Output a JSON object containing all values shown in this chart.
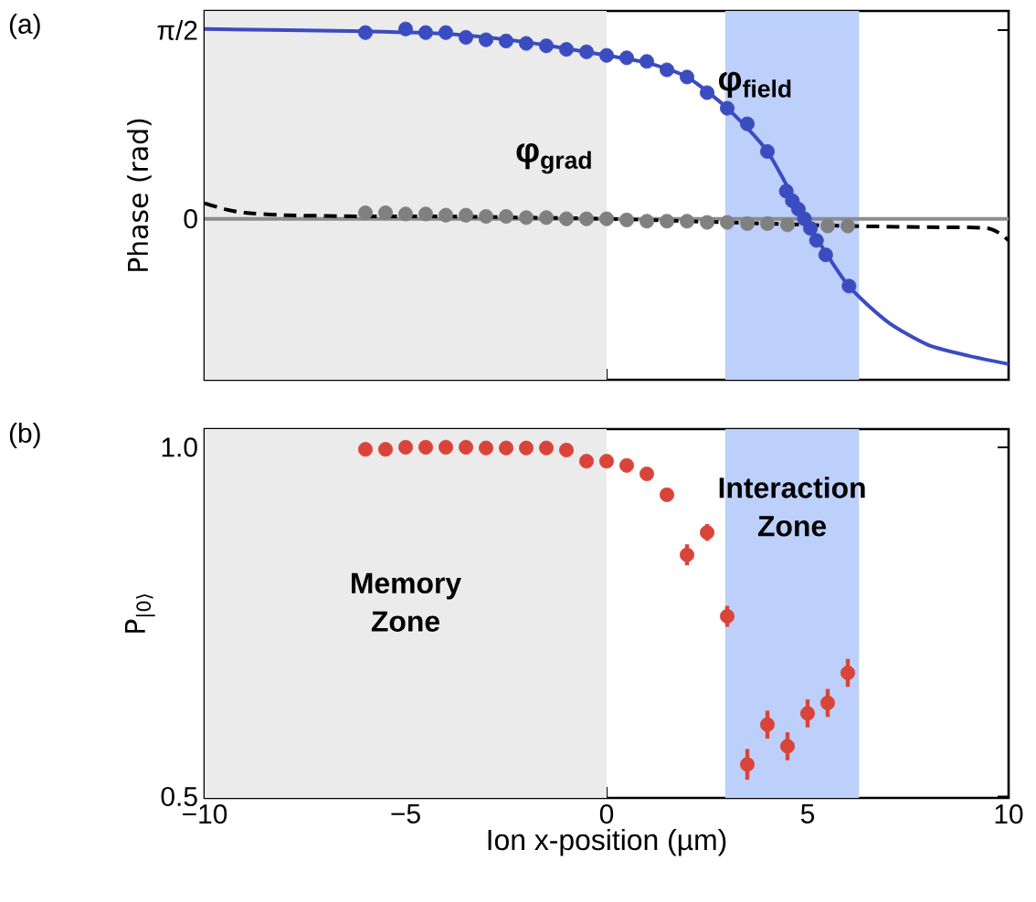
{
  "chart_data": [
    {
      "type": "scatter",
      "ylabel": "Phase (rad)",
      "annotations": [
        "(a)"
      ],
      "marker": "circle",
      "tick_labels": "y",
      "xlim": [
        -10,
        10
      ],
      "xticks": [
        -10,
        -5,
        0,
        5,
        10
      ],
      "ylim": [
        -1.34,
        1.73
      ],
      "yticks": [
        {
          "value": 1.5708,
          "label": "π/2"
        },
        {
          "value": 0,
          "label": "0"
        }
      ],
      "bands": [
        {
          "axis": "x",
          "from": -10,
          "to": 0,
          "color": "#ebebeb"
        },
        {
          "axis": "x",
          "from": 2.95,
          "to": 6.28,
          "color": "#bdd0fb"
        }
      ],
      "ref_lines": [
        {
          "axis": "y",
          "value": 0,
          "color": "#8c8c8c"
        }
      ],
      "series": [
        {
          "type": "line",
          "marker": "none",
          "color": "#000000",
          "line_style": "dashed",
          "x": [
            -10,
            -9.5,
            -9,
            -8,
            -6,
            -4,
            -2,
            0,
            2,
            4,
            6,
            8,
            9.5,
            10
          ],
          "values": [
            0.13,
            0.08,
            0.05,
            0.03,
            0.02,
            0.02,
            0.01,
            0.0,
            -0.02,
            -0.04,
            -0.06,
            -0.07,
            -0.08,
            -0.18
          ]
        },
        {
          "type": "line",
          "marker": "none",
          "color": "#3b4cc0",
          "line_style": "solid",
          "x": [
            -10,
            -6,
            -4,
            -2,
            0,
            1,
            2,
            3,
            4,
            5,
            6,
            7,
            8,
            9,
            10
          ],
          "values": [
            1.58,
            1.56,
            1.54,
            1.47,
            1.36,
            1.3,
            1.18,
            0.92,
            0.56,
            -0.04,
            -0.55,
            -0.86,
            -1.05,
            -1.14,
            -1.21
          ]
        },
        {
          "name": "φ$_{grad}$",
          "color": "#808080",
          "x": [
            -6,
            -5.5,
            -5,
            -4.5,
            -4,
            -3.5,
            -3,
            -2.5,
            -2,
            -1.5,
            -1,
            -0.5,
            0,
            0.5,
            1,
            1.5,
            2,
            2.5,
            3,
            3.5,
            4,
            4.5,
            5,
            5.5,
            6
          ],
          "values": [
            0.05,
            0.05,
            0.04,
            0.04,
            0.03,
            0.03,
            0.02,
            0.02,
            0.01,
            0.01,
            0,
            0,
            0,
            -0.01,
            -0.02,
            -0.02,
            -0.02,
            -0.03,
            -0.03,
            -0.04,
            -0.04,
            -0.05,
            null,
            -0.06,
            -0.06
          ]
        },
        {
          "name": "φ$_{field}$",
          "color": "#3b4cc0",
          "x": [
            -6,
            -5,
            -4.5,
            -4,
            -3.5,
            -3,
            -2.5,
            -2,
            -1.5,
            -1,
            -0.5,
            0,
            0.5,
            1,
            1.5,
            2,
            2.5,
            3,
            3.5,
            4,
            4.47,
            4.62,
            4.77,
            4.92,
            5.07,
            5.22,
            5.45,
            6.03
          ],
          "values": [
            1.55,
            1.58,
            1.55,
            1.55,
            1.51,
            1.49,
            1.48,
            1.46,
            1.44,
            1.41,
            1.39,
            1.36,
            1.34,
            1.31,
            1.24,
            1.18,
            1.05,
            0.92,
            0.79,
            0.56,
            0.23,
            0.15,
            0.08,
            0,
            -0.08,
            -0.18,
            -0.3,
            -0.56
          ]
        }
      ]
    },
    {
      "type": "scatter",
      "xlabel": "Ion x-position (µm)",
      "ylabel": "P$_{|0⟩}$",
      "annotations": [
        "(b)"
      ],
      "marker": "circle",
      "xlim": [
        -10,
        10
      ],
      "xticks": [
        {
          "value": -10,
          "label": "−10"
        },
        {
          "value": -5,
          "label": "−5"
        },
        {
          "value": 0,
          "label": "0"
        },
        {
          "value": 5,
          "label": "5"
        },
        {
          "value": 10,
          "label": "10"
        }
      ],
      "ylim": [
        0.498,
        1.026
      ],
      "yticks": [
        {
          "value": 0.5,
          "label": "0.5"
        },
        {
          "value": 1.0,
          "label": "1.0"
        }
      ],
      "bands": [
        {
          "axis": "x",
          "from": -10,
          "to": 0,
          "color": "#ebebeb",
          "label": "Memory Zone"
        },
        {
          "axis": "x",
          "from": 2.95,
          "to": 6.28,
          "color": "#bdd0fb",
          "label": "Interaction Zone"
        }
      ],
      "series": [
        {
          "color": "#d9443a",
          "x": [
            -6,
            -5.5,
            -5,
            -4.5,
            -4,
            -3.5,
            -3,
            -2.5,
            -2,
            -1.5,
            -1,
            -0.5,
            0,
            0.5,
            1,
            1.5,
            2,
            2.5,
            3,
            3.5,
            4,
            4.5,
            5,
            5.5,
            6
          ],
          "values": [
            0.997,
            0.997,
            1.0,
            1.0,
            1.0,
            1.0,
            0.999,
            0.999,
            0.999,
            0.999,
            0.996,
            0.98,
            0.98,
            0.974,
            0.962,
            0.932,
            0.846,
            0.878,
            0.758,
            0.546,
            0.603,
            0.572,
            0.619,
            0.634,
            0.677
          ],
          "errors": [
            null,
            null,
            null,
            null,
            null,
            null,
            null,
            null,
            null,
            null,
            null,
            null,
            null,
            null,
            null,
            null,
            0.015,
            0.012,
            0.015,
            0.022,
            0.02,
            0.02,
            0.02,
            0.02,
            0.02
          ]
        }
      ]
    }
  ]
}
